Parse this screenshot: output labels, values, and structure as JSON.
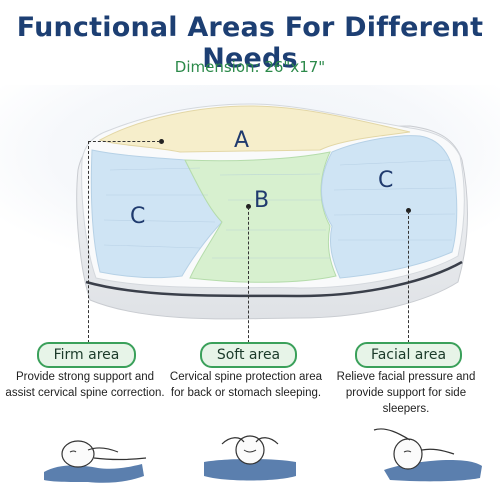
{
  "header": {
    "title": "Functional Areas For Different Needs",
    "dimension": "Dimension: 26\"x17\""
  },
  "pillow": {
    "zone_a_label": "A",
    "zone_b_label": "B",
    "zone_c_left_label": "C",
    "zone_c_right_label": "C",
    "colors": {
      "zone_a": "#f6eecb",
      "zone_b": "#d7f0cf",
      "zone_c": "#cfe4f4"
    }
  },
  "areas": [
    {
      "name": "Firm area",
      "description": "Provide strong support and assist cervical spine correction."
    },
    {
      "name": "Soft area",
      "description": "Cervical spine protection area for back or stomach sleeping."
    },
    {
      "name": "Facial area",
      "description": "Relieve facial pressure and provide support for side sleepers."
    }
  ]
}
